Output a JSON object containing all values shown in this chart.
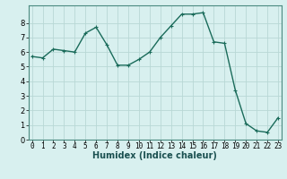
{
  "x": [
    0,
    1,
    2,
    3,
    4,
    5,
    6,
    7,
    8,
    9,
    10,
    11,
    12,
    13,
    14,
    15,
    16,
    17,
    18,
    19,
    20,
    21,
    22,
    23
  ],
  "y": [
    5.7,
    5.6,
    6.2,
    6.1,
    6.0,
    7.3,
    7.7,
    6.5,
    5.1,
    5.1,
    5.5,
    6.0,
    7.0,
    7.8,
    8.6,
    8.6,
    8.7,
    6.7,
    6.6,
    3.4,
    1.1,
    0.6,
    0.5,
    1.5
  ],
  "line_color": "#1a6b5a",
  "marker": "+",
  "marker_size": 3,
  "linewidth": 1.0,
  "background_color": "#d8f0ef",
  "grid_color": "#b8d8d5",
  "xlabel": "Humidex (Indice chaleur)",
  "xlabel_fontsize": 7,
  "ylim": [
    0,
    9.2
  ],
  "xlim": [
    -0.3,
    23.3
  ],
  "yticks": [
    0,
    1,
    2,
    3,
    4,
    5,
    6,
    7,
    8
  ],
  "xticks": [
    0,
    1,
    2,
    3,
    4,
    5,
    6,
    7,
    8,
    9,
    10,
    11,
    12,
    13,
    14,
    15,
    16,
    17,
    18,
    19,
    20,
    21,
    22,
    23
  ],
  "tick_fontsize": 5.5
}
